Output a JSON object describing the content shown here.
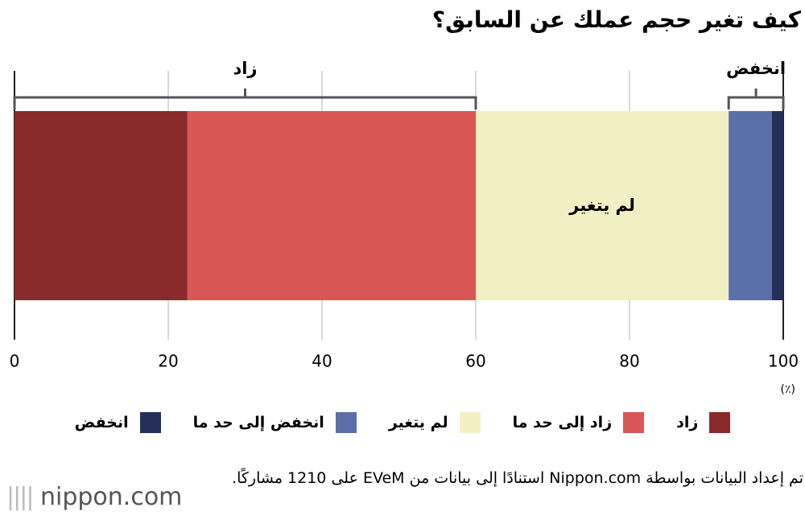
{
  "chart_data": {
    "type": "stacked_bar_horizontal",
    "title": "كيف تغير حجم عملك عن السابق؟",
    "series": [
      {
        "name": "زاد",
        "color": "#8b2a2b",
        "values": [
          22.5
        ]
      },
      {
        "name": "زاد إلى حد ما",
        "color": "#d95657",
        "values": [
          37.5
        ]
      },
      {
        "name": "لم يتغير",
        "color": "#f2efc4",
        "values": [
          32.9
        ]
      },
      {
        "name": "انخفض إلى حد ما",
        "color": "#5a6ea8",
        "values": [
          5.6
        ]
      },
      {
        "name": "انخفض",
        "color": "#253059",
        "values": [
          1.5
        ]
      }
    ],
    "xlim": [
      0,
      100
    ],
    "xticks": [
      0,
      20,
      40,
      60,
      80,
      100
    ],
    "x_unit": "(٪)",
    "grid": true,
    "annotations": [
      "زاد",
      "انخفض"
    ],
    "source": "تم إعداد البيانات بواسطة Nippon.com استنادًا إلى بيانات من EVeM على 1210 مشاركًا.",
    "logo": "nippon.com"
  }
}
